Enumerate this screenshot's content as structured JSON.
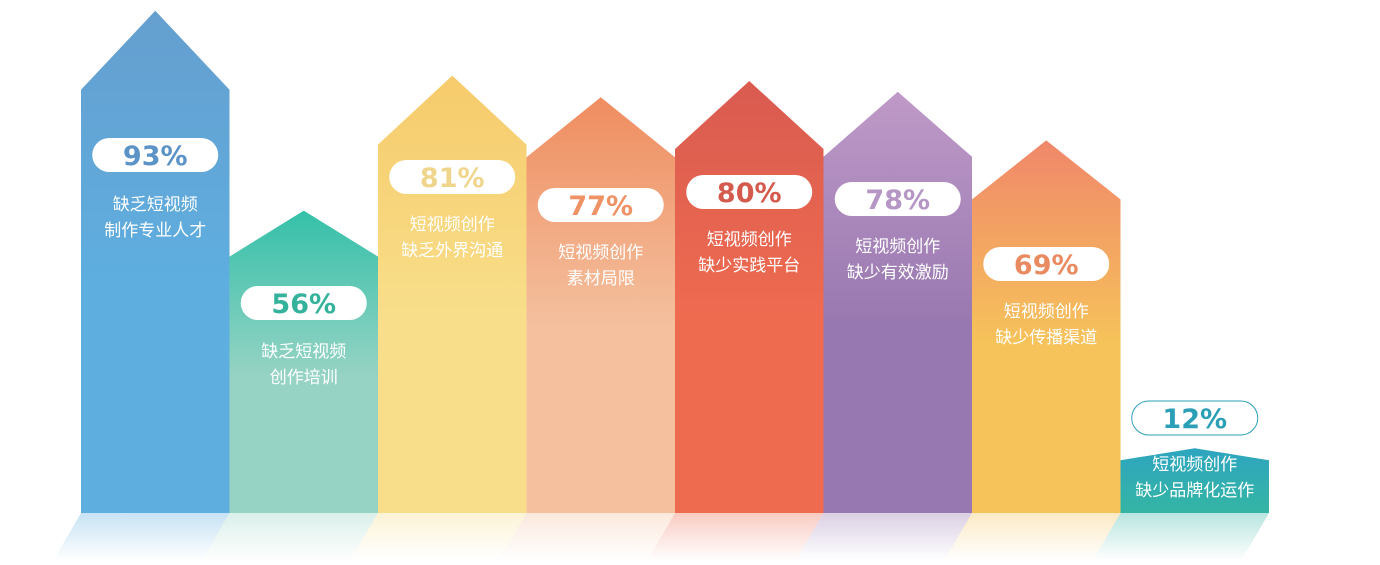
{
  "chart_data": {
    "type": "bar",
    "style": "arrow-shaped columns with percentage pills and reflections",
    "title": "",
    "xlabel": "",
    "ylabel": "",
    "ylim": [
      0,
      100
    ],
    "grid": false,
    "legend": "none",
    "categories": [
      [
        "缺乏短视频",
        "制作专业人才"
      ],
      [
        "缺乏短视频",
        "创作培训"
      ],
      [
        "短视频创作",
        "缺乏外界沟通"
      ],
      [
        "短视频创作",
        "素材局限"
      ],
      [
        "短视频创作",
        "缺少实践平台"
      ],
      [
        "短视频创作",
        "缺少有效激励"
      ],
      [
        "短视频创作",
        "缺少传播渠道"
      ],
      [
        "短视频创作",
        "缺少品牌化运作"
      ]
    ],
    "values": [
      93,
      56,
      81,
      77,
      80,
      78,
      69,
      12
    ],
    "value_labels": [
      "93%",
      "56%",
      "81%",
      "77%",
      "80%",
      "78%",
      "69%",
      "12%"
    ],
    "colors": [
      {
        "top": "#659fcf",
        "bottom": "#5eaee0",
        "text": "#5b93c7"
      },
      {
        "top": "#35c0a9",
        "bottom": "#96d3c4",
        "text": "#35b29c"
      },
      {
        "top": "#f6cb6b",
        "bottom": "#f8de8a",
        "text": "#f0d68c"
      },
      {
        "top": "#ef8d60",
        "bottom": "#f4c09e",
        "text": "#ee9366"
      },
      {
        "top": "#d95b50",
        "bottom": "#ef6b50",
        "text": "#d55a4e"
      },
      {
        "top": "#bf9ac8",
        "bottom": "#9878b0",
        "text": "#b596c4"
      },
      {
        "top": "#f0876a",
        "bottom": "#f6c35a",
        "text": "#e98a60"
      },
      {
        "top": "#2ea5c0",
        "bottom": "#34b5a4",
        "text": "#2b9fb6"
      }
    ]
  }
}
